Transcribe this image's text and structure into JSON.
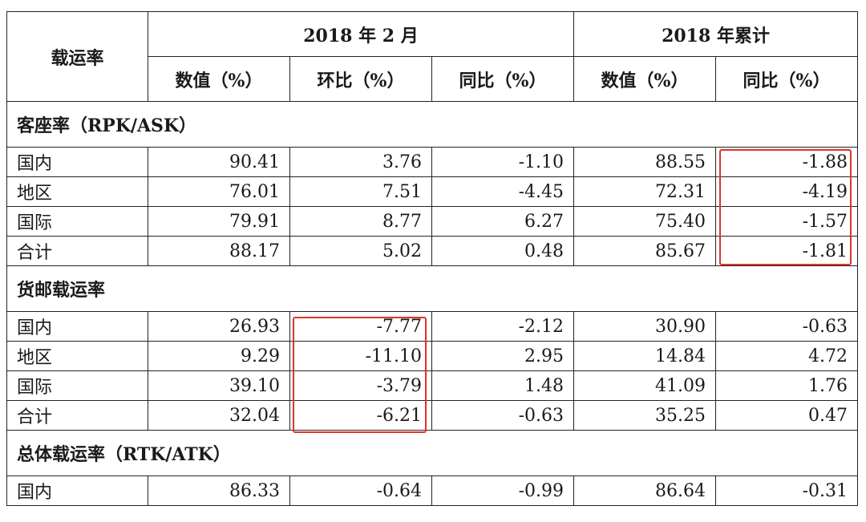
{
  "header": {
    "corner": "载运率",
    "group_feb": "2018 年 2 月",
    "group_cum": "2018 年累计",
    "col_value": "数值（%）",
    "col_mom": "环比（%）",
    "col_yoy": "同比（%）",
    "col_value2": "数值（%）",
    "col_yoy2": "同比（%）"
  },
  "sections": [
    {
      "title": "客座率（RPK/ASK）",
      "rows": [
        {
          "label": "国内",
          "v": "90.41",
          "mom": "3.76",
          "yoy": "-1.10",
          "cv": "88.55",
          "cyoy": "-1.88"
        },
        {
          "label": "地区",
          "v": "76.01",
          "mom": "7.51",
          "yoy": "-4.45",
          "cv": "72.31",
          "cyoy": "-4.19"
        },
        {
          "label": "国际",
          "v": "79.91",
          "mom": "8.77",
          "yoy": "6.27",
          "cv": "75.40",
          "cyoy": "-1.57"
        },
        {
          "label": "合计",
          "v": "88.17",
          "mom": "5.02",
          "yoy": "0.48",
          "cv": "85.67",
          "cyoy": "-1.81"
        }
      ]
    },
    {
      "title": "货邮载运率",
      "rows": [
        {
          "label": "国内",
          "v": "26.93",
          "mom": "-7.77",
          "yoy": "-2.12",
          "cv": "30.90",
          "cyoy": "-0.63"
        },
        {
          "label": "地区",
          "v": "9.29",
          "mom": "-11.10",
          "yoy": "2.95",
          "cv": "14.84",
          "cyoy": "4.72"
        },
        {
          "label": "国际",
          "v": "39.10",
          "mom": "-3.79",
          "yoy": "1.48",
          "cv": "41.09",
          "cyoy": "1.76"
        },
        {
          "label": "合计",
          "v": "32.04",
          "mom": "-6.21",
          "yoy": "-0.63",
          "cv": "35.25",
          "cyoy": "0.47"
        }
      ]
    },
    {
      "title": "总体载运率（RTK/ATK）",
      "rows": [
        {
          "label": "国内",
          "v": "86.33",
          "mom": "-0.64",
          "yoy": "-0.99",
          "cv": "86.64",
          "cyoy": "-0.31"
        }
      ]
    }
  ],
  "highlight_color": "#e0352b"
}
